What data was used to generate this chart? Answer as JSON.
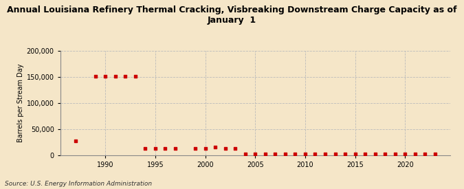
{
  "title": "Annual Louisiana Refinery Thermal Cracking, Visbreaking Downstream Charge Capacity as of\nJanuary  1",
  "ylabel": "Barrels per Stream Day",
  "source": "Source: U.S. Energy Information Administration",
  "background_color": "#f5e6c8",
  "plot_background": "#f5e6c8",
  "dot_color": "#cc0000",
  "years": [
    1987,
    1989,
    1990,
    1991,
    1992,
    1993,
    1994,
    1995,
    1996,
    1997,
    1999,
    2000,
    2001,
    2002,
    2003,
    2004,
    2005,
    2006,
    2007,
    2008,
    2009,
    2010,
    2011,
    2012,
    2013,
    2014,
    2015,
    2016,
    2017,
    2018,
    2019,
    2020,
    2021,
    2022,
    2023
  ],
  "values": [
    27000,
    151000,
    151000,
    151000,
    151000,
    151000,
    12500,
    12500,
    12000,
    13000,
    12000,
    13000,
    15000,
    13000,
    13000,
    2000,
    2000,
    1500,
    1500,
    1500,
    1500,
    1500,
    1500,
    1500,
    1500,
    1500,
    1500,
    1500,
    1500,
    1500,
    1500,
    1500,
    1500,
    2000,
    2000
  ],
  "xlim": [
    1985.5,
    2024.5
  ],
  "ylim": [
    0,
    200000
  ],
  "yticks": [
    0,
    50000,
    100000,
    150000,
    200000
  ],
  "xticks": [
    1990,
    1995,
    2000,
    2005,
    2010,
    2015,
    2020
  ],
  "title_fontsize": 9,
  "ylabel_fontsize": 7,
  "tick_fontsize": 7,
  "source_fontsize": 6.5,
  "dot_size": 10
}
